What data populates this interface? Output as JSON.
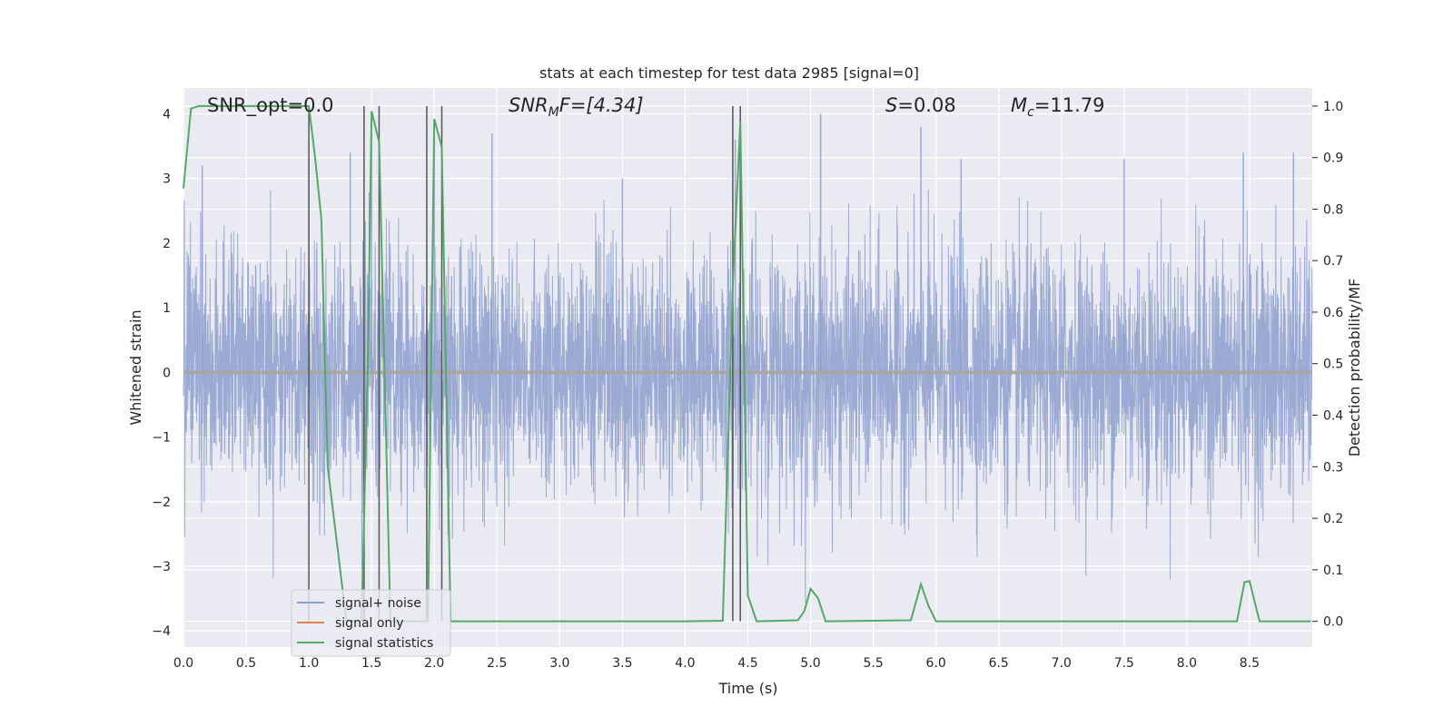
{
  "chart_data": {
    "type": "line",
    "title": "stats at each timestep for test data 2985 [signal=0]",
    "xlabel": "Time (s)",
    "ylabel": "Whitened strain",
    "ylabel_right": "Detection probability/MF",
    "xlim": [
      0.0,
      9.0
    ],
    "ylim": [
      -4.25,
      4.4
    ],
    "ylim_right": [
      -0.05,
      1.035
    ],
    "x_ticks": [
      0.0,
      0.5,
      1.0,
      1.5,
      2.0,
      2.5,
      3.0,
      3.5,
      4.0,
      4.5,
      5.0,
      5.5,
      6.0,
      6.5,
      7.0,
      7.5,
      8.0,
      8.5
    ],
    "x_tick_labels": [
      "0.0",
      "0.5",
      "1.0",
      "1.5",
      "2.0",
      "2.5",
      "3.0",
      "3.5",
      "4.0",
      "4.5",
      "5.0",
      "5.5",
      "6.0",
      "6.5",
      "7.0",
      "7.5",
      "8.0",
      "8.5"
    ],
    "y_ticks": [
      -4,
      -3,
      -2,
      -1,
      0,
      1,
      2,
      3,
      4
    ],
    "y_tick_labels": [
      "−4",
      "−3",
      "−2",
      "−1",
      "0",
      "1",
      "2",
      "3",
      "4"
    ],
    "y_right_ticks": [
      0.0,
      0.1,
      0.2,
      0.3,
      0.4,
      0.5,
      0.6,
      0.7,
      0.8,
      0.9,
      1.0
    ],
    "y_right_tick_labels": [
      "0.0",
      "0.1",
      "0.2",
      "0.3",
      "0.4",
      "0.5",
      "0.6",
      "0.7",
      "0.8",
      "0.9",
      "1.0"
    ],
    "grid": true,
    "legend_position": "lower-left",
    "annotations": {
      "snr_opt": "SNR_opt=0.0",
      "snr_mf_name": "SNR",
      "snr_mf_sub": "M",
      "snr_mf_tail": "F=[4.34]",
      "s_name": "S",
      "s_value": "=0.08",
      "mc_name": "M",
      "mc_sub": "c",
      "mc_value": "=11.79"
    },
    "series": [
      {
        "name": "signal+ noise",
        "color": "#8c9fcd",
        "axis": "left",
        "description_values": {
          "typical_range": [
            -1.6,
            1.6
          ],
          "extreme_peaks_x": [
            0.15,
            1.0,
            1.33,
            1.5,
            2.0,
            2.46,
            3.5,
            4.4,
            5.08,
            5.88,
            6.2,
            7.5,
            8.45,
            8.85
          ],
          "extreme_peaks_y": [
            3.2,
            3.3,
            3.4,
            3.7,
            3.6,
            3.7,
            3.0,
            3.6,
            4.0,
            3.8,
            3.3,
            3.3,
            3.4,
            3.4
          ]
        }
      },
      {
        "name": "signal only",
        "color": "#dd8452",
        "axis": "left",
        "x": [
          0.0,
          9.0
        ],
        "y": [
          0.0,
          0.0
        ]
      },
      {
        "name": "signal statistics",
        "color": "#55a868",
        "axis": "right",
        "x": [
          0.0,
          0.06,
          0.12,
          0.2,
          0.5,
          0.8,
          1.0,
          1.05,
          1.1,
          1.15,
          1.3,
          1.42,
          1.47,
          1.5,
          1.56,
          1.65,
          1.8,
          1.95,
          2.0,
          2.06,
          2.13,
          2.2,
          4.0,
          4.3,
          4.38,
          4.44,
          4.5,
          4.57,
          4.9,
          4.95,
          5.0,
          5.06,
          5.12,
          5.8,
          5.88,
          5.94,
          6.0,
          8.4,
          8.46,
          8.5,
          8.58,
          8.99
        ],
        "y": [
          0.84,
          0.995,
          1.0,
          1.0,
          1.0,
          1.0,
          1.0,
          0.9,
          0.78,
          0.3,
          0.0,
          0.0,
          0.5,
          0.99,
          0.93,
          0.0,
          0.0,
          0.0,
          0.975,
          0.92,
          0.0,
          0.0,
          0.0,
          0.001,
          0.65,
          0.97,
          0.05,
          0.0,
          0.002,
          0.02,
          0.063,
          0.045,
          0.0,
          0.002,
          0.072,
          0.03,
          0.0,
          0.0,
          0.076,
          0.078,
          0.0,
          0.0
        ]
      }
    ],
    "vertical_lines_x": [
      1.0,
      1.44,
      1.56,
      1.94,
      2.06,
      4.38,
      4.44
    ]
  }
}
